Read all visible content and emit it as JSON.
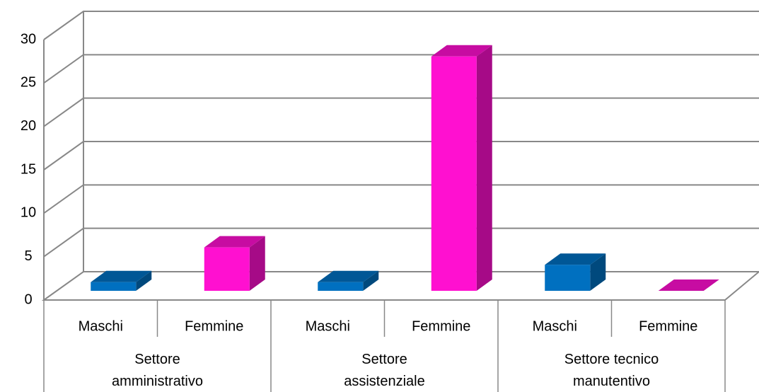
{
  "chart_data": {
    "type": "bar3d",
    "categories": [
      "Settore amministrativo",
      "Settore assistenziale",
      "Settore tecnico manutentivo"
    ],
    "series": [
      {
        "name": "Maschi",
        "color": "#0070c0",
        "values": [
          1,
          1,
          3
        ]
      },
      {
        "name": "Femmine",
        "color": "#ff10d0",
        "values": [
          5,
          27,
          0
        ]
      }
    ],
    "ylim": [
      0,
      30
    ],
    "yticks": [
      0,
      5,
      10,
      15,
      20,
      25,
      30
    ],
    "grid": true
  }
}
